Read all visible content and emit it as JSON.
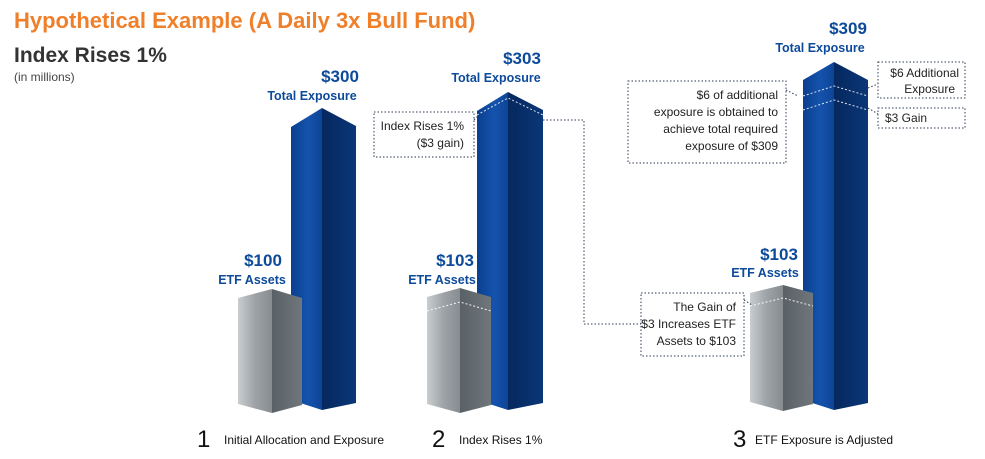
{
  "title": "Hypothetical Example (A Daily 3x Bull Fund)",
  "subtitle": "Index Rises 1%",
  "units": "(in millions)",
  "steps": [
    {
      "number": "1",
      "label": "Initial Allocation and Exposure",
      "etf_value": "$100",
      "etf_label": "ETF Assets",
      "exposure_value": "$300",
      "exposure_label": "Total Exposure"
    },
    {
      "number": "2",
      "label": "Index Rises 1%",
      "etf_value": "$103",
      "etf_label": "ETF Assets",
      "exposure_value": "$303",
      "exposure_label": "Total Exposure",
      "note_lines": [
        "Index Rises 1%",
        "($3 gain)"
      ]
    },
    {
      "number": "3",
      "label": "ETF Exposure is Adjusted",
      "etf_value": "$103",
      "etf_label": "ETF Assets",
      "exposure_value": "$309",
      "exposure_label": "Total Exposure",
      "additional_note_lines": [
        "$6 of additional",
        "exposure is obtained to",
        "achieve total required",
        "exposure of $309"
      ],
      "six_note_lines": [
        "$6 Additional",
        "Exposure"
      ],
      "three_note": "$3 Gain"
    }
  ],
  "gain_note_lines": [
    "The Gain of",
    "$3 Increases ETF",
    "Assets to $103"
  ],
  "colors": {
    "title": "#f07f2a",
    "label_blue": "#0d4a9a",
    "blue_front": "#0e4ea5",
    "blue_side": "#08306e",
    "gray_front": "#9a9fa3",
    "gray_side": "#5f666b"
  }
}
